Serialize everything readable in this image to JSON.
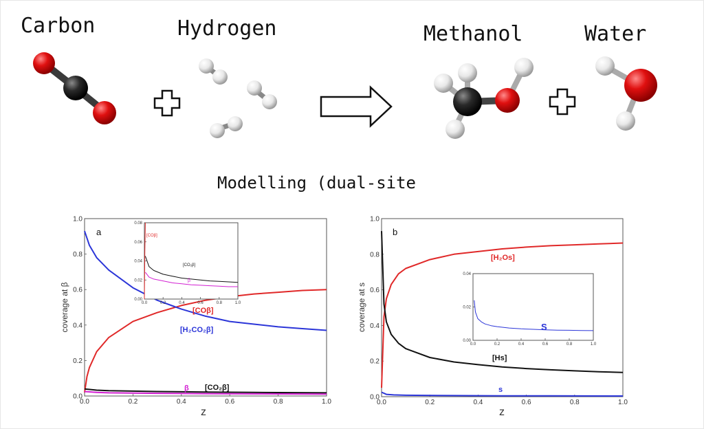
{
  "reaction": {
    "reactant1": "Carbon",
    "reactant2": "Hydrogen",
    "product1": "Methanol",
    "product2": "Water",
    "colors": {
      "oxygen": "#e01010",
      "carbon": "#2a2a2a",
      "hydrogen": "#e8e8e8"
    }
  },
  "caption": "Modelling (dual-site",
  "panel_a": {
    "letter": "a",
    "ylabel": "coverage at β",
    "xlabel": "z",
    "curve_labels": {
      "co": "[COβ]",
      "h2co2": "[H₂CO₂β]",
      "beta": "β",
      "co2": "[CO₂β]"
    },
    "inset": {
      "co_label": "[COβ]",
      "co2_label": "[CO₂β]",
      "beta_label": "β"
    }
  },
  "panel_b": {
    "letter": "b",
    "ylabel": "coverage at s",
    "xlabel": "z",
    "curve_labels": {
      "h2o": "[H₂Os]",
      "hs": "[Hs]",
      "s": "s"
    },
    "inset": {
      "s_label": "S"
    }
  },
  "chart_data": [
    {
      "type": "line",
      "title": "a",
      "xlabel": "z",
      "ylabel": "coverage at β",
      "xlim": [
        0,
        1
      ],
      "ylim": [
        0,
        1
      ],
      "xticks": [
        "0.0",
        "0.2",
        "0.4",
        "0.6",
        "0.8",
        "1.0"
      ],
      "yticks": [
        "0.0",
        "0.2",
        "0.4",
        "0.6",
        "0.8",
        "1.0"
      ],
      "series": [
        {
          "name": "[COβ]",
          "color": "#e02828",
          "x": [
            0,
            0.01,
            0.02,
            0.05,
            0.1,
            0.2,
            0.3,
            0.4,
            0.5,
            0.6,
            0.7,
            0.8,
            0.9,
            1.0
          ],
          "y": [
            0.02,
            0.11,
            0.16,
            0.25,
            0.33,
            0.42,
            0.47,
            0.51,
            0.54,
            0.56,
            0.575,
            0.585,
            0.595,
            0.6
          ]
        },
        {
          "name": "[H₂CO₂β]",
          "color": "#2b35d8",
          "x": [
            0,
            0.02,
            0.05,
            0.1,
            0.2,
            0.3,
            0.4,
            0.5,
            0.6,
            0.7,
            0.8,
            0.9,
            1.0
          ],
          "y": [
            0.93,
            0.85,
            0.78,
            0.71,
            0.61,
            0.54,
            0.49,
            0.45,
            0.42,
            0.405,
            0.39,
            0.38,
            0.37
          ]
        },
        {
          "name": "[CO₂β]",
          "color": "#111111",
          "x": [
            0,
            0.05,
            0.1,
            0.3,
            0.5,
            0.7,
            1.0
          ],
          "y": [
            0.04,
            0.033,
            0.03,
            0.025,
            0.022,
            0.02,
            0.018
          ]
        },
        {
          "name": "β",
          "color": "#d21fd2",
          "x": [
            0,
            0.05,
            0.1,
            0.3,
            0.5,
            0.7,
            1.0
          ],
          "y": [
            0.025,
            0.02,
            0.018,
            0.015,
            0.013,
            0.012,
            0.011
          ]
        }
      ],
      "inset": {
        "xlim": [
          0,
          1
        ],
        "ylim": [
          0,
          0.08
        ],
        "xticks": [
          "0.0",
          "0.2",
          "0.4",
          "0.6",
          "0.8",
          "1.0"
        ],
        "yticks": [
          "0.00",
          "0.02",
          "0.04",
          "0.06",
          "0.08"
        ],
        "series": [
          {
            "name": "[COβ]",
            "color": "#e02828",
            "x": [
              0,
              0.005,
              0.01
            ],
            "y": [
              0,
              0.05,
              0.08
            ]
          },
          {
            "name": "[CO₂β]",
            "color": "#111111",
            "x": [
              0.01,
              0.05,
              0.1,
              0.2,
              0.3,
              0.4,
              0.5,
              0.6,
              0.7,
              0.8,
              0.9,
              1.0
            ],
            "y": [
              0.045,
              0.034,
              0.03,
              0.026,
              0.024,
              0.022,
              0.021,
              0.02,
              0.019,
              0.0185,
              0.018,
              0.0175
            ]
          },
          {
            "name": "β",
            "color": "#d21fd2",
            "x": [
              0.01,
              0.05,
              0.1,
              0.2,
              0.3,
              0.4,
              0.5,
              0.6,
              0.7,
              0.8,
              0.9,
              1.0
            ],
            "y": [
              0.028,
              0.023,
              0.021,
              0.019,
              0.017,
              0.016,
              0.015,
              0.0145,
              0.014,
              0.0135,
              0.013,
              0.013
            ]
          }
        ]
      }
    },
    {
      "type": "line",
      "title": "b",
      "xlabel": "z",
      "ylabel": "coverage at s",
      "xlim": [
        0,
        1
      ],
      "ylim": [
        0,
        1
      ],
      "xticks": [
        "0.0",
        "0.2",
        "0.4",
        "0.6",
        "0.8",
        "1.0"
      ],
      "yticks": [
        "0.0",
        "0.2",
        "0.4",
        "0.6",
        "0.8",
        "1.0"
      ],
      "series": [
        {
          "name": "[H₂Os]",
          "color": "#e02828",
          "x": [
            0,
            0.01,
            0.02,
            0.04,
            0.07,
            0.1,
            0.2,
            0.3,
            0.4,
            0.5,
            0.6,
            0.7,
            0.8,
            0.9,
            1.0
          ],
          "y": [
            0.05,
            0.45,
            0.55,
            0.63,
            0.69,
            0.72,
            0.77,
            0.8,
            0.815,
            0.83,
            0.84,
            0.848,
            0.853,
            0.858,
            0.863
          ]
        },
        {
          "name": "[Hs]",
          "color": "#111111",
          "x": [
            0,
            0.01,
            0.02,
            0.04,
            0.07,
            0.1,
            0.2,
            0.3,
            0.4,
            0.5,
            0.6,
            0.7,
            0.8,
            0.9,
            1.0
          ],
          "y": [
            0.93,
            0.52,
            0.42,
            0.35,
            0.3,
            0.27,
            0.22,
            0.195,
            0.18,
            0.167,
            0.158,
            0.151,
            0.145,
            0.14,
            0.136
          ]
        },
        {
          "name": "s",
          "color": "#2b35d8",
          "x": [
            0,
            0.02,
            0.05,
            0.1,
            0.3,
            0.5,
            0.7,
            1.0
          ],
          "y": [
            0.025,
            0.013,
            0.01,
            0.008,
            0.006,
            0.005,
            0.005,
            0.004
          ]
        }
      ],
      "inset": {
        "xlim": [
          0,
          1
        ],
        "ylim": [
          0,
          0.04
        ],
        "xticks": [
          "0.0",
          "0.2",
          "0.4",
          "0.6",
          "0.8",
          "1.0"
        ],
        "yticks": [
          "0.00",
          "0.02",
          "0.04"
        ],
        "series": [
          {
            "name": "S",
            "color": "#2b35d8",
            "x": [
              0.01,
              0.02,
              0.04,
              0.07,
              0.1,
              0.15,
              0.2,
              0.3,
              0.4,
              0.5,
              0.6,
              0.7,
              0.8,
              0.9,
              1.0
            ],
            "y": [
              0.024,
              0.017,
              0.013,
              0.011,
              0.0098,
              0.0088,
              0.0082,
              0.0074,
              0.0069,
              0.0066,
              0.0063,
              0.0061,
              0.006,
              0.0059,
              0.0058
            ]
          }
        ]
      }
    }
  ]
}
